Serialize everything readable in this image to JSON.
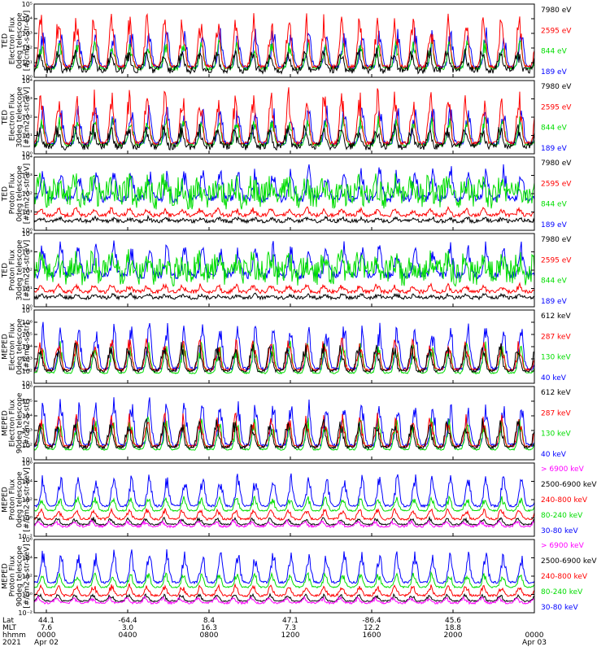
{
  "chart_data": [
    {
      "type": "line",
      "ylabel": [
        "TED",
        "Electron Flux",
        "0deg telescope",
        "[#/cm2-s-str-eV]"
      ],
      "ylim": [
        1,
        100000
      ],
      "yscale": "log",
      "ticks": [
        "10⁰",
        "10¹",
        "10²",
        "10³",
        "10⁴",
        "10⁵"
      ],
      "series": [
        {
          "name": "7980 eV",
          "color": "#000000"
        },
        {
          "name": "2595 eV",
          "color": "#ff0000"
        },
        {
          "name": "844 eV",
          "color": "#00dd00"
        },
        {
          "name": "189 eV",
          "color": "#0000ff"
        }
      ]
    },
    {
      "type": "line",
      "ylabel": [
        "TED",
        "Electron Flux",
        "30deg telescope",
        "[#/cm2-s-str-eV]"
      ],
      "ylim": [
        1,
        100000
      ],
      "yscale": "log",
      "ticks": [
        "10⁰",
        "10¹",
        "10²",
        "10³",
        "10⁴"
      ],
      "series": [
        {
          "name": "7980 eV",
          "color": "#000000"
        },
        {
          "name": "2595 eV",
          "color": "#ff0000"
        },
        {
          "name": "844 eV",
          "color": "#00dd00"
        },
        {
          "name": "189 eV",
          "color": "#0000ff"
        }
      ]
    },
    {
      "type": "line",
      "ylabel": [
        "TED",
        "Proton Flux",
        "0deg telescope",
        "[#/cm2-s-str-eV]"
      ],
      "ylim": [
        1,
        100000
      ],
      "yscale": "log",
      "ticks": [
        "10⁰",
        "10¹",
        "10²",
        "10³",
        "10⁴"
      ],
      "series": [
        {
          "name": "7980 eV",
          "color": "#000000"
        },
        {
          "name": "2595 eV",
          "color": "#ff0000"
        },
        {
          "name": "844 eV",
          "color": "#00dd00"
        },
        {
          "name": "189 eV",
          "color": "#0000ff"
        }
      ]
    },
    {
      "type": "line",
      "ylabel": [
        "TED",
        "Proton Flux",
        "30deg telescope",
        "[#/cm2-s-str-eV]"
      ],
      "ylim": [
        1,
        100000
      ],
      "yscale": "log",
      "ticks": [
        "10⁰",
        "10¹",
        "10²",
        "10³",
        "10⁴"
      ],
      "series": [
        {
          "name": "7980 eV",
          "color": "#000000"
        },
        {
          "name": "2595 eV",
          "color": "#ff0000"
        },
        {
          "name": "844 eV",
          "color": "#00dd00"
        },
        {
          "name": "189 eV",
          "color": "#0000ff"
        }
      ]
    },
    {
      "type": "line",
      "ylabel": [
        "MEPED",
        "Electron Flux",
        "0deg telescope",
        "[#/cm2-s-str]"
      ],
      "ylim": [
        10,
        10000000
      ],
      "yscale": "log",
      "ticks": [
        "10¹",
        "10²",
        "10³",
        "10⁴",
        "10⁵",
        "10⁶",
        "10⁷"
      ],
      "series": [
        {
          "name": "612 keV",
          "color": "#000000"
        },
        {
          "name": "287 keV",
          "color": "#ff0000"
        },
        {
          "name": "130 keV",
          "color": "#00dd00"
        },
        {
          "name": "40 keV",
          "color": "#0000ff"
        }
      ]
    },
    {
      "type": "line",
      "ylabel": [
        "MEPED",
        "Electron Flux",
        "90deg telescope",
        "[#/cm2-s-str]"
      ],
      "ylim": [
        10,
        10000000
      ],
      "yscale": "log",
      "ticks": [
        "10¹",
        "10²",
        "10³",
        "10⁴",
        "10⁵",
        "10⁶"
      ],
      "series": [
        {
          "name": "612 keV",
          "color": "#000000"
        },
        {
          "name": "287 keV",
          "color": "#ff0000"
        },
        {
          "name": "130 keV",
          "color": "#00dd00"
        },
        {
          "name": "40 keV",
          "color": "#0000ff"
        }
      ]
    },
    {
      "type": "line",
      "ylabel": [
        "MEPED",
        "Proton Flux",
        "0deg telescope",
        "[#/cm2-s-str-keV]"
      ],
      "ylim": [
        0.01,
        1000000
      ],
      "yscale": "log",
      "ticks": [
        "10⁻²",
        "10⁰",
        "10²",
        "10⁴",
        "10⁶"
      ],
      "series": [
        {
          "name": "> 6900 keV",
          "color": "#ff00ff"
        },
        {
          "name": "2500-6900 keV",
          "color": "#000000"
        },
        {
          "name": "240-800 keV",
          "color": "#ff0000"
        },
        {
          "name": "80-240 keV",
          "color": "#00dd00"
        },
        {
          "name": "30-80 keV",
          "color": "#0000ff"
        }
      ]
    },
    {
      "type": "line",
      "ylabel": [
        "MEPED",
        "Proton Flux",
        "90deg telescope",
        "[#/cm2-s-str-keV]"
      ],
      "ylim": [
        0.01,
        1000000
      ],
      "yscale": "log",
      "ticks": [
        "10⁻²",
        "10⁰",
        "10²",
        "10⁴",
        "10⁶"
      ],
      "series": [
        {
          "name": "> 6900 keV",
          "color": "#ff00ff"
        },
        {
          "name": "2500-6900 keV",
          "color": "#000000"
        },
        {
          "name": "240-800 keV",
          "color": "#ff0000"
        },
        {
          "name": "80-240 keV",
          "color": "#00dd00"
        },
        {
          "name": "30-80 keV",
          "color": "#0000ff"
        }
      ]
    }
  ],
  "bottom_axis": {
    "row_labels": [
      "Lat",
      "MLT",
      "hhmm",
      "2021"
    ],
    "columns": [
      {
        "lat": "44.1",
        "mlt": "7.6",
        "hhmm": "0000",
        "date": "Apr 02"
      },
      {
        "lat": "-64.4",
        "mlt": "3.0",
        "hhmm": "0400",
        "date": ""
      },
      {
        "lat": "8.4",
        "mlt": "16.3",
        "hhmm": "0800",
        "date": ""
      },
      {
        "lat": "47.1",
        "mlt": "7.3",
        "hhmm": "1200",
        "date": ""
      },
      {
        "lat": "-86.4",
        "mlt": "12.2",
        "hhmm": "1600",
        "date": ""
      },
      {
        "lat": "45.6",
        "mlt": "18.8",
        "hhmm": "2000",
        "date": ""
      },
      {
        "lat": "",
        "mlt": "",
        "hhmm": "0000",
        "date": "Apr 03"
      }
    ]
  }
}
